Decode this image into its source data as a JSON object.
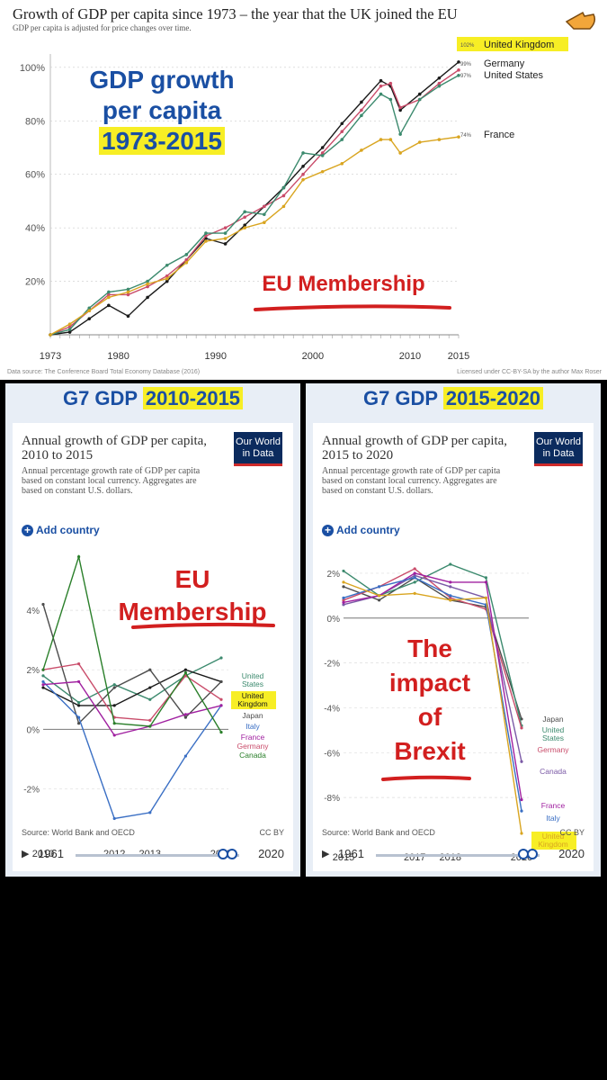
{
  "top": {
    "title": "Growth of GDP per capita since 1973 – the year that the UK joined the EU",
    "subtitle": "GDP per capita is adjusted for price changes over time.",
    "overlay_line1": "GDP growth",
    "overlay_line2": "per capita",
    "overlay_line3": "1973-2015",
    "eu_label": "EU Membership",
    "source": "Data source: The Conference Board Total Economy Database (2016)",
    "license": "Licensed under CC-BY-SA by the author Max Roser",
    "end_labels": {
      "uk_value": "102%",
      "de_value": "99%",
      "us_value": "97%",
      "fr_value": "74%"
    }
  },
  "left": {
    "heading_prefix": "G7 GDP",
    "heading_years": "2010-2015",
    "chart_title": "Annual growth of GDP per capita, 2010 to 2015",
    "chart_sub": "Annual percentage growth rate of GDP per capita based on constant local currency. Aggregates are based on constant U.S. dollars.",
    "owid_line1": "Our World",
    "owid_line2": "in Data",
    "add_country": "Add country",
    "overlay_line1": "EU",
    "overlay_line2": "Membership",
    "source": "Source: World Bank and OECD",
    "cc": "CC BY",
    "timeline_start": "1961",
    "timeline_end": "2020"
  },
  "right": {
    "heading_prefix": "G7 GDP",
    "heading_years": "2015-2020",
    "chart_title": "Annual growth of GDP per capita, 2015 to 2020",
    "chart_sub": "Annual percentage growth rate of GDP per capita based on constant local currency. Aggregates are based on constant U.S. dollars.",
    "owid_line1": "Our World",
    "owid_line2": "in Data",
    "add_country": "Add country",
    "overlay_line1": "The",
    "overlay_line2": "impact",
    "overlay_line3": "of",
    "overlay_line4": "Brexit",
    "source": "Source: World Bank and OECD",
    "cc": "CC BY",
    "timeline_start": "1961",
    "timeline_end": "2020"
  },
  "colors": {
    "uk": "#1a1a1a",
    "germany": "#c94c6a",
    "us": "#3c8a6e",
    "france": "#d9a520",
    "japan": "#4d4d4d",
    "italy": "#3a6fc4",
    "canada": "#7b5aa6",
    "highlight": "#f7ee25",
    "accent": "#1a4fa3",
    "red": "#d21f1f"
  },
  "chart_data": [
    {
      "type": "line",
      "title": "Growth of GDP per capita since 1973 – the year that the UK joined the EU",
      "x": [
        1973,
        1975,
        1977,
        1979,
        1981,
        1983,
        1985,
        1987,
        1989,
        1991,
        1993,
        1995,
        1997,
        1999,
        2001,
        2003,
        2005,
        2007,
        2008,
        2009,
        2011,
        2013,
        2015
      ],
      "xticks": [
        1973,
        1980,
        1990,
        2000,
        2010,
        2015
      ],
      "yticks": [
        0,
        20,
        40,
        60,
        80,
        100
      ],
      "ytick_labels": [
        "",
        "20%",
        "40%",
        "60%",
        "80%",
        "100%"
      ],
      "ylim": [
        0,
        105
      ],
      "xlim": [
        1973,
        2015
      ],
      "series": [
        {
          "name": "United Kingdom",
          "color": "#1a1a1a",
          "values": [
            0,
            1,
            6,
            11,
            7,
            14,
            20,
            28,
            36,
            34,
            41,
            48,
            55,
            63,
            70,
            79,
            87,
            95,
            93,
            84,
            90,
            96,
            102
          ]
        },
        {
          "name": "Germany",
          "color": "#c94c6a",
          "values": [
            0,
            3,
            9,
            15,
            15,
            18,
            22,
            28,
            37,
            40,
            44,
            48,
            52,
            60,
            68,
            76,
            84,
            93,
            94,
            85,
            88,
            94,
            99
          ]
        },
        {
          "name": "United States",
          "color": "#3c8a6e",
          "values": [
            0,
            2,
            10,
            16,
            17,
            20,
            26,
            30,
            38,
            38,
            46,
            45,
            55,
            68,
            67,
            73,
            82,
            90,
            88,
            75,
            88,
            93,
            97
          ]
        },
        {
          "name": "France",
          "color": "#d9a520",
          "values": [
            0,
            4,
            9,
            14,
            16,
            19,
            21,
            27,
            35,
            36,
            40,
            42,
            48,
            58,
            61,
            64,
            69,
            73,
            73,
            68,
            72,
            73,
            74
          ]
        }
      ],
      "end_labels": [
        "United Kingdom",
        "Germany",
        "United States",
        "France"
      ]
    },
    {
      "type": "line",
      "title": "Annual growth of GDP per capita, 2010 to 2015",
      "x": [
        2010,
        2011,
        2012,
        2013,
        2014,
        2015
      ],
      "xticks": [
        2010,
        2012,
        2013,
        2015
      ],
      "ytick_labels": [
        "4%",
        "2%",
        "0%",
        "-2%"
      ],
      "yticks": [
        4,
        2,
        0,
        -2
      ],
      "ylim": [
        -3.5,
        6
      ],
      "series": [
        {
          "name": "United States",
          "color": "#3c8a6e",
          "values": [
            1.8,
            0.9,
            1.5,
            1.0,
            1.8,
            2.4
          ]
        },
        {
          "name": "United Kingdom",
          "color": "#1a1a1a",
          "values": [
            1.4,
            0.8,
            0.8,
            1.4,
            2.0,
            1.6
          ]
        },
        {
          "name": "Japan",
          "color": "#4d4d4d",
          "values": [
            4.2,
            0.2,
            1.4,
            2.0,
            0.4,
            1.6
          ]
        },
        {
          "name": "Italy",
          "color": "#3a6fc4",
          "values": [
            1.6,
            0.4,
            -3.0,
            -2.8,
            -0.9,
            0.8
          ]
        },
        {
          "name": "France",
          "color": "#a020a0",
          "values": [
            1.5,
            1.6,
            -0.2,
            0.1,
            0.5,
            0.8
          ]
        },
        {
          "name": "Germany",
          "color": "#c94c6a",
          "values": [
            2.0,
            2.2,
            0.4,
            0.3,
            1.8,
            1.0
          ]
        },
        {
          "name": "Canada",
          "color": "#2a7f2a",
          "values": [
            2.0,
            5.8,
            0.2,
            0.1,
            1.9,
            -0.1
          ]
        }
      ],
      "legend": [
        "United States",
        "United Kingdom",
        "Japan",
        "Italy",
        "France",
        "Germany",
        "Canada"
      ]
    },
    {
      "type": "line",
      "title": "Annual growth of GDP per capita, 2015 to 2020",
      "x": [
        2015,
        2016,
        2017,
        2018,
        2019,
        2020
      ],
      "xticks": [
        2015,
        2017,
        2018,
        2020
      ],
      "ytick_labels": [
        "2%",
        "0%",
        "-2%",
        "-4%",
        "-6%",
        "-8%"
      ],
      "yticks": [
        2,
        0,
        -2,
        -4,
        -6,
        -8
      ],
      "ylim": [
        -10,
        3
      ],
      "series": [
        {
          "name": "Japan",
          "color": "#4d4d4d",
          "values": [
            1.4,
            0.8,
            1.8,
            0.8,
            0.5,
            -4.5
          ]
        },
        {
          "name": "United States",
          "color": "#3c8a6e",
          "values": [
            2.1,
            1.0,
            1.6,
            2.4,
            1.8,
            -4.8
          ]
        },
        {
          "name": "Germany",
          "color": "#c94c6a",
          "values": [
            0.8,
            1.4,
            2.2,
            0.9,
            0.4,
            -4.9
          ]
        },
        {
          "name": "Canada",
          "color": "#7b5aa6",
          "values": [
            0.6,
            1.0,
            1.9,
            1.4,
            0.9,
            -6.4
          ]
        },
        {
          "name": "France",
          "color": "#a020a0",
          "values": [
            0.7,
            1.0,
            2.0,
            1.6,
            1.6,
            -8.1
          ]
        },
        {
          "name": "Italy",
          "color": "#3a6fc4",
          "values": [
            0.9,
            1.4,
            1.8,
            1.0,
            0.6,
            -8.6
          ]
        },
        {
          "name": "United Kingdom",
          "color": "#d9a520",
          "values": [
            1.6,
            1.0,
            1.1,
            0.8,
            0.9,
            -9.6
          ]
        }
      ],
      "legend": [
        "Japan",
        "United States",
        "Germany",
        "Canada",
        "France",
        "Italy",
        "United Kingdom"
      ]
    }
  ]
}
